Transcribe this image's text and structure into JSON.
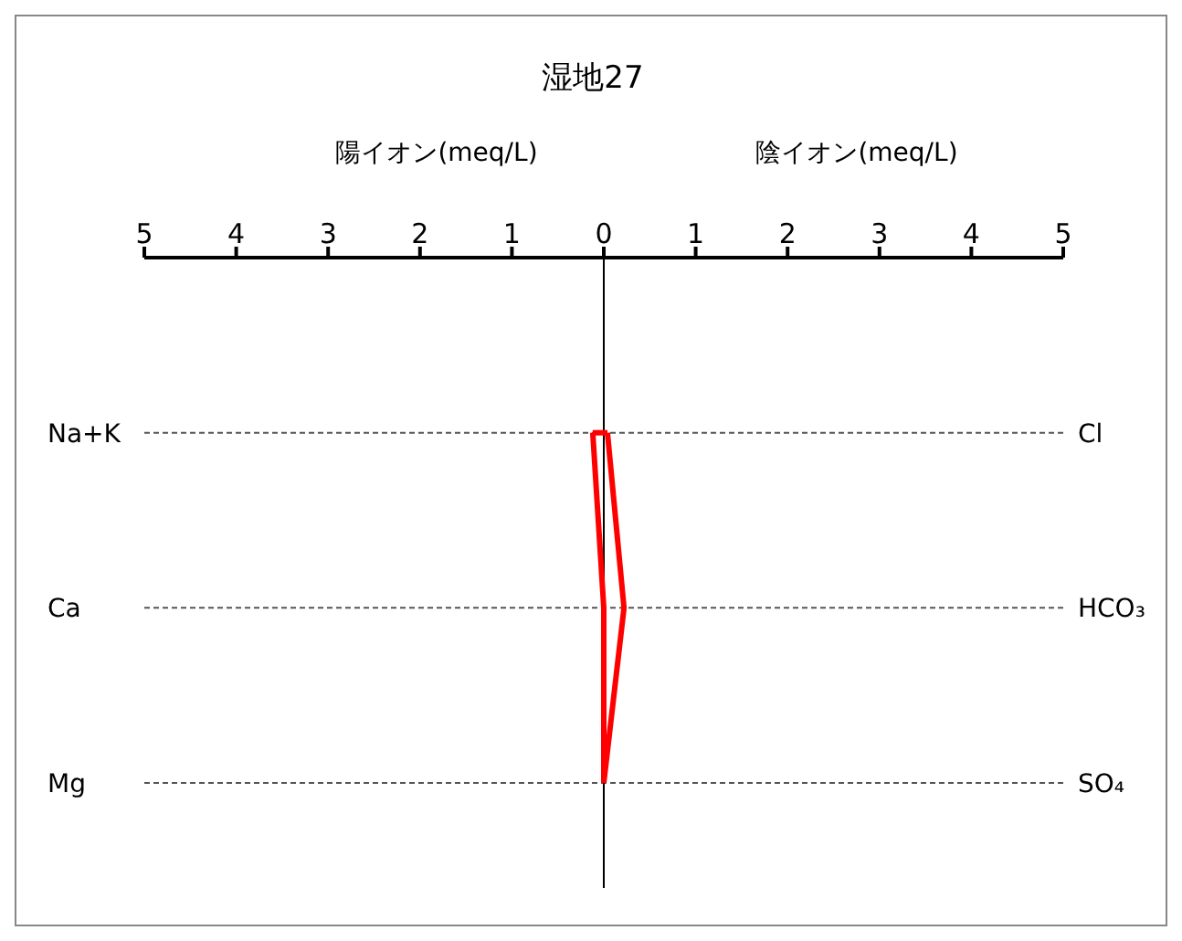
{
  "chart_data": {
    "type": "line",
    "title": "湿地27",
    "xlabel": "陽イオン(meq/L)",
    "annotations": [
      "陰イオン(meq/L)"
    ],
    "categories": [
      "Na+K",
      "Ca",
      "Mg"
    ],
    "y2_categories": [
      "Cl",
      "HCO₃",
      "SO₄"
    ],
    "xlim": [
      -5,
      5
    ],
    "xticks": [
      {
        "value": -5,
        "label": "5"
      },
      {
        "value": -4,
        "label": "4"
      },
      {
        "value": -3,
        "label": "3"
      },
      {
        "value": -2,
        "label": "2"
      },
      {
        "value": -1,
        "label": "1"
      },
      0,
      1,
      2,
      3,
      4,
      5
    ],
    "series": [
      {
        "color": "#ff0000",
        "values": [
          -0.12,
          0,
          0
        ]
      },
      {
        "color": "#ff0000",
        "values": [
          0.04,
          0.22,
          0
        ]
      }
    ],
    "ref_lines": [
      {
        "axis": "x",
        "value": 0,
        "color": "#000000"
      }
    ],
    "grid": "y",
    "orientation": "horizontal",
    "line_style": "solid",
    "marker": "none"
  }
}
